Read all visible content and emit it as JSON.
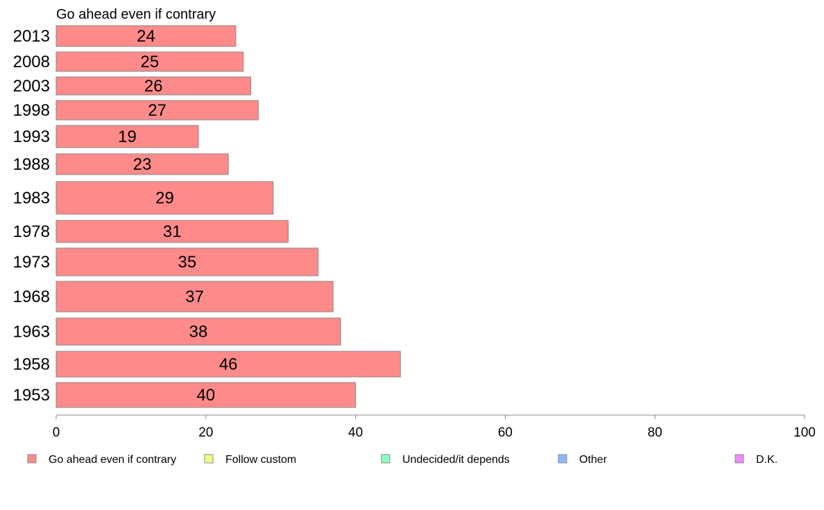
{
  "chart_data": {
    "type": "bar",
    "orientation": "horizontal",
    "series_title": "Go ahead even if contrary",
    "categories": [
      "2013",
      "2008",
      "2003",
      "1998",
      "1993",
      "1988",
      "1983",
      "1978",
      "1973",
      "1968",
      "1963",
      "1958",
      "1953"
    ],
    "series": [
      {
        "name": "Go ahead even if contrary",
        "values": [
          24,
          25,
          26,
          27,
          19,
          23,
          29,
          31,
          35,
          37,
          38,
          46,
          40
        ]
      }
    ],
    "data_labels": [
      "24",
      "25",
      "26",
      "27",
      "19",
      "23",
      "29",
      "31",
      "35",
      "37",
      "38",
      "46",
      "40"
    ],
    "xlim": [
      0,
      100
    ],
    "x_ticks": [
      "0",
      "20",
      "40",
      "60",
      "80",
      "100"
    ],
    "grid": false,
    "legend_placement": "bottom",
    "legend": [
      {
        "label": "Go ahead even if contrary",
        "color": "#ff8a8a"
      },
      {
        "label": "Follow custom",
        "color": "#eeff8a"
      },
      {
        "label": "Undecided/it depends",
        "color": "#8affc0"
      },
      {
        "label": "Other",
        "color": "#8ab8ff"
      },
      {
        "label": "D.K.",
        "color": "#f08aff"
      }
    ],
    "bar_color": "#ff8a8a",
    "bar_stroke": "#888888",
    "axis_color": "#888888"
  }
}
